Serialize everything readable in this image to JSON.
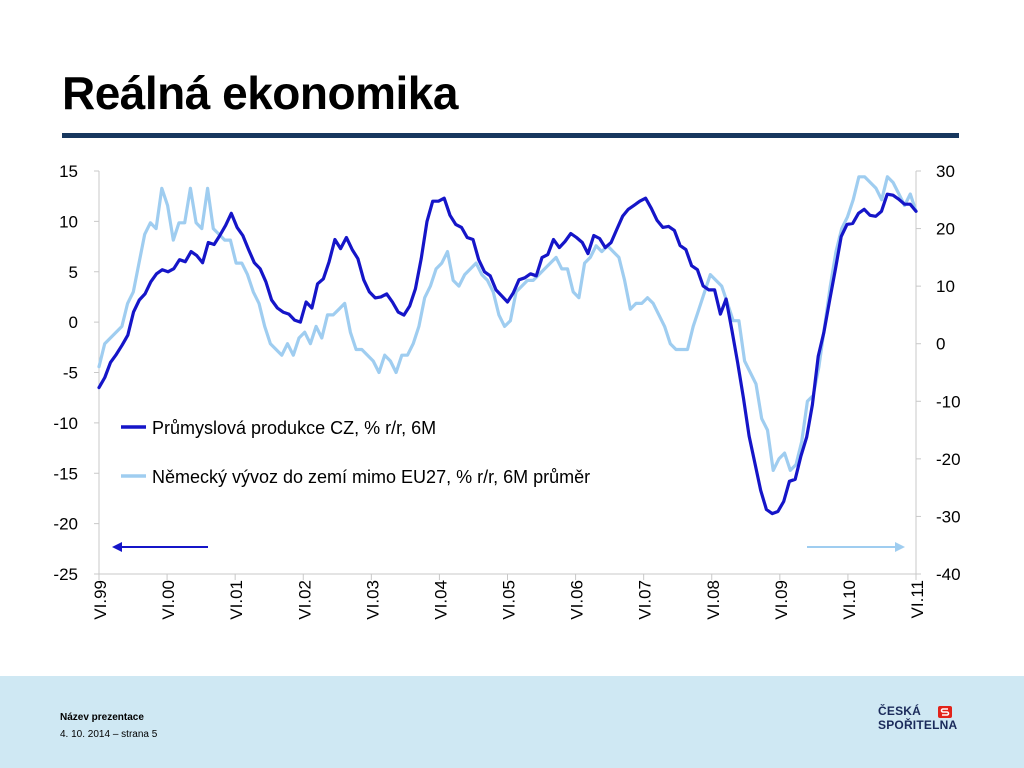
{
  "slide": {
    "title": "Reálná ekonomika"
  },
  "footer": {
    "presentation_name": "Název prezentace",
    "date_page": "4. 10. 2014 – strana 5",
    "logo_line1": "ČESKÁ",
    "logo_line2": "SPOŘITELNA"
  },
  "colors": {
    "primary_series": "#1515c8",
    "secondary_series": "#9fcdf0",
    "title_rule": "#17375e",
    "footer_bg": "#cfe8f3",
    "logo_red": "#e2231a"
  },
  "chart_data": {
    "type": "line",
    "x_tick_labels": [
      "VI.99",
      "VI.00",
      "VI.01",
      "VI.02",
      "VI.03",
      "VI.04",
      "VI.05",
      "VI.06",
      "VI.07",
      "VI.08",
      "VI.09",
      "VI.10",
      "VI.11"
    ],
    "x_range": [
      "VI.99",
      "VI.11"
    ],
    "y_left_ticks": [
      "15",
      "10",
      "5",
      "0",
      "-5",
      "-10",
      "-15",
      "-20",
      "-25"
    ],
    "y_left_range": [
      -25,
      15
    ],
    "y_right_ticks": [
      "30",
      "20",
      "10",
      "0",
      "-10",
      "-20",
      "-30",
      "-40"
    ],
    "y_right_range": [
      -40,
      30
    ],
    "grid": false,
    "legend_position": "inside-center-left",
    "series": [
      {
        "name": "Průmyslová produkce CZ, % r/r, 6M",
        "axis": "left",
        "arrow": "left",
        "values": [
          -6.5,
          -5.5,
          -4.0,
          -3.2,
          -2.3,
          -1.3,
          1.0,
          2.2,
          2.8,
          4.0,
          4.8,
          5.2,
          5.0,
          5.3,
          6.2,
          6.0,
          7.0,
          6.6,
          5.9,
          7.9,
          7.7,
          8.6,
          9.6,
          10.8,
          9.4,
          8.6,
          7.2,
          5.9,
          5.3,
          4.0,
          2.2,
          1.4,
          1.0,
          0.8,
          0.2,
          0.0,
          2.0,
          1.4,
          3.8,
          4.3,
          6.0,
          8.2,
          7.3,
          8.4,
          7.2,
          6.3,
          4.2,
          3.0,
          2.4,
          2.5,
          2.8,
          2.0,
          1.0,
          0.7,
          1.6,
          3.3,
          6.3,
          10.0,
          12.0,
          12.0,
          12.3,
          10.6,
          9.7,
          9.4,
          8.4,
          8.2,
          6.2,
          5.0,
          4.6,
          3.2,
          2.6,
          2.0,
          2.9,
          4.2,
          4.4,
          4.8,
          4.6,
          6.4,
          6.7,
          8.2,
          7.4,
          8.0,
          8.8,
          8.4,
          7.9,
          6.8,
          8.6,
          8.3,
          7.4,
          7.9,
          9.2,
          10.5,
          11.2,
          11.6,
          12.0,
          12.3,
          11.3,
          10.1,
          9.4,
          9.5,
          9.1,
          7.6,
          7.2,
          5.6,
          5.2,
          3.6,
          3.2,
          3.2,
          0.8,
          2.3,
          -0.8,
          -4.0,
          -7.5,
          -11.3,
          -14.0,
          -16.7,
          -18.6,
          -19.0,
          -18.8,
          -17.8,
          -15.8,
          -15.6,
          -13.3,
          -11.4,
          -8.2,
          -3.4,
          -1.0,
          2.2,
          5.3,
          8.5,
          9.7,
          9.8,
          10.8,
          11.2,
          10.6,
          10.5,
          11.0,
          12.7,
          12.6,
          12.2,
          11.7,
          11.7,
          11.0
        ]
      },
      {
        "name": "Německý vývoz  do zemí mimo EU27, % r/r, 6M průměr",
        "axis": "right",
        "arrow": "right",
        "values": [
          -4,
          0,
          1,
          2,
          3,
          7,
          9,
          14,
          19,
          21,
          20,
          27,
          24,
          18,
          21,
          21,
          27,
          21,
          20,
          27,
          20,
          19,
          18,
          18,
          14,
          14,
          12,
          9,
          7,
          3,
          0,
          -1,
          -2,
          0,
          -2,
          1,
          2,
          0,
          3,
          1,
          5,
          5,
          6,
          7,
          2,
          -1,
          -1,
          -2,
          -3,
          -5,
          -2,
          -3,
          -5,
          -2,
          -2,
          0,
          3,
          8,
          10,
          13,
          14,
          16,
          11,
          10,
          12,
          13,
          14,
          12,
          11,
          9,
          5,
          3,
          4,
          9,
          10,
          11,
          11,
          12,
          13,
          14,
          15,
          13,
          13,
          9,
          8,
          14,
          15,
          17,
          16,
          17,
          16,
          15,
          11,
          6,
          7,
          7,
          8,
          7,
          5,
          3,
          0,
          -1,
          -1,
          -1,
          3,
          6,
          9,
          12,
          11,
          10,
          7,
          4,
          4,
          -3,
          -5,
          -7,
          -13,
          -15,
          -22,
          -20,
          -19,
          -22,
          -21,
          -17,
          -10,
          -9,
          -4,
          3,
          10,
          16,
          20,
          22,
          25,
          29,
          29,
          28,
          27,
          25,
          29,
          28,
          26,
          24,
          26,
          23
        ]
      }
    ]
  }
}
